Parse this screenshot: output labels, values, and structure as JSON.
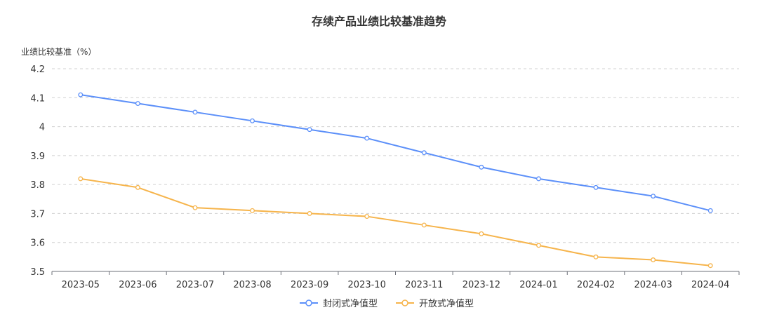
{
  "chart_data": {
    "type": "line",
    "title": "存续产品业绩比较基准趋势",
    "ylabel": "业绩比较基准（%）",
    "xlabel": "",
    "ylim": [
      3.5,
      4.2
    ],
    "yticks": [
      "3.5",
      "3.6",
      "3.7",
      "3.8",
      "3.9",
      "4",
      "4.1",
      "4.2"
    ],
    "grid": true,
    "legend": "bottom-center",
    "categories": [
      "2023-05",
      "2023-06",
      "2023-07",
      "2023-08",
      "2023-09",
      "2023-10",
      "2023-11",
      "2023-12",
      "2024-01",
      "2024-02",
      "2024-03",
      "2024-04"
    ],
    "series": [
      {
        "name": "封闭式净值型",
        "color": "#5b8ff9",
        "values": [
          4.11,
          4.08,
          4.05,
          4.02,
          3.99,
          3.96,
          3.91,
          3.86,
          3.82,
          3.79,
          3.76,
          3.71
        ]
      },
      {
        "name": "开放式净值型",
        "color": "#f6b44b",
        "values": [
          3.82,
          3.79,
          3.72,
          3.71,
          3.7,
          3.69,
          3.66,
          3.63,
          3.59,
          3.55,
          3.54,
          3.52
        ]
      }
    ]
  }
}
